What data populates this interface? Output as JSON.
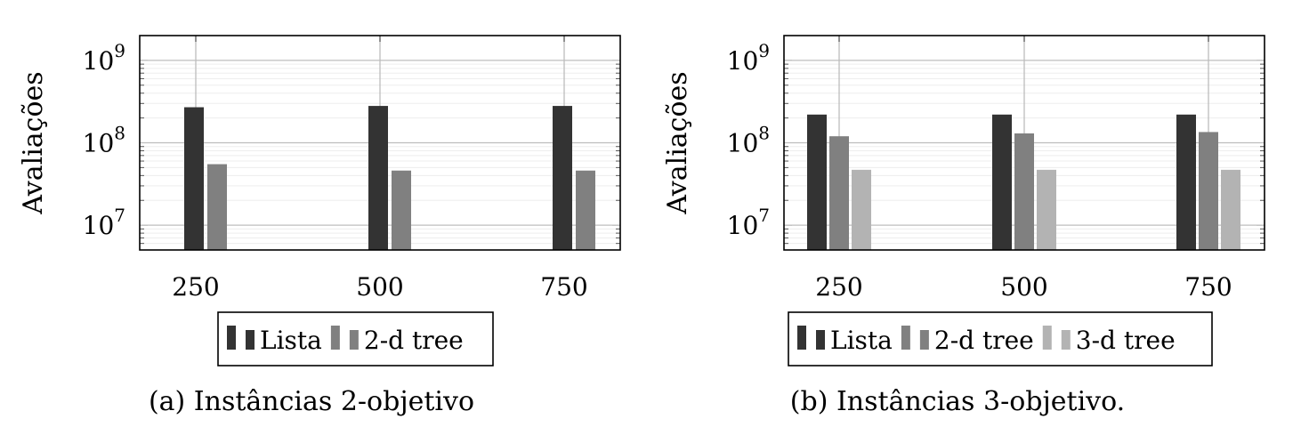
{
  "chart_data": [
    {
      "type": "bar",
      "caption": "(a) Instâncias 2-objetivo",
      "ylabel": "Avaliações",
      "xlabel": "",
      "yscale": "log",
      "ylim": [
        5000000,
        2000000000
      ],
      "categories": [
        "250",
        "500",
        "750"
      ],
      "yticks": [
        {
          "value": 10000000,
          "base": "10",
          "exp": "7"
        },
        {
          "value": 100000000,
          "base": "10",
          "exp": "8"
        },
        {
          "value": 1000000000,
          "base": "10",
          "exp": "9"
        }
      ],
      "grid": true,
      "legend_position": "bottom-center",
      "series": [
        {
          "name": "Lista",
          "color": "#333333",
          "values": [
            270000000,
            280000000,
            280000000
          ]
        },
        {
          "name": "2-d tree",
          "color": "#808080",
          "values": [
            55000000,
            46000000,
            46000000
          ]
        }
      ]
    },
    {
      "type": "bar",
      "caption": "(b) Instâncias 3-objetivo.",
      "ylabel": "Avaliações",
      "xlabel": "",
      "yscale": "log",
      "ylim": [
        5000000,
        2000000000
      ],
      "categories": [
        "250",
        "500",
        "750"
      ],
      "yticks": [
        {
          "value": 10000000,
          "base": "10",
          "exp": "7"
        },
        {
          "value": 100000000,
          "base": "10",
          "exp": "8"
        },
        {
          "value": 1000000000,
          "base": "10",
          "exp": "9"
        }
      ],
      "grid": true,
      "legend_position": "bottom-center",
      "series": [
        {
          "name": "Lista",
          "color": "#333333",
          "values": [
            220000000,
            220000000,
            220000000
          ]
        },
        {
          "name": "2-d tree",
          "color": "#808080",
          "values": [
            120000000,
            130000000,
            135000000
          ]
        },
        {
          "name": "3-d tree",
          "color": "#b3b3b3",
          "values": [
            47000000,
            47000000,
            47000000
          ]
        }
      ]
    }
  ]
}
